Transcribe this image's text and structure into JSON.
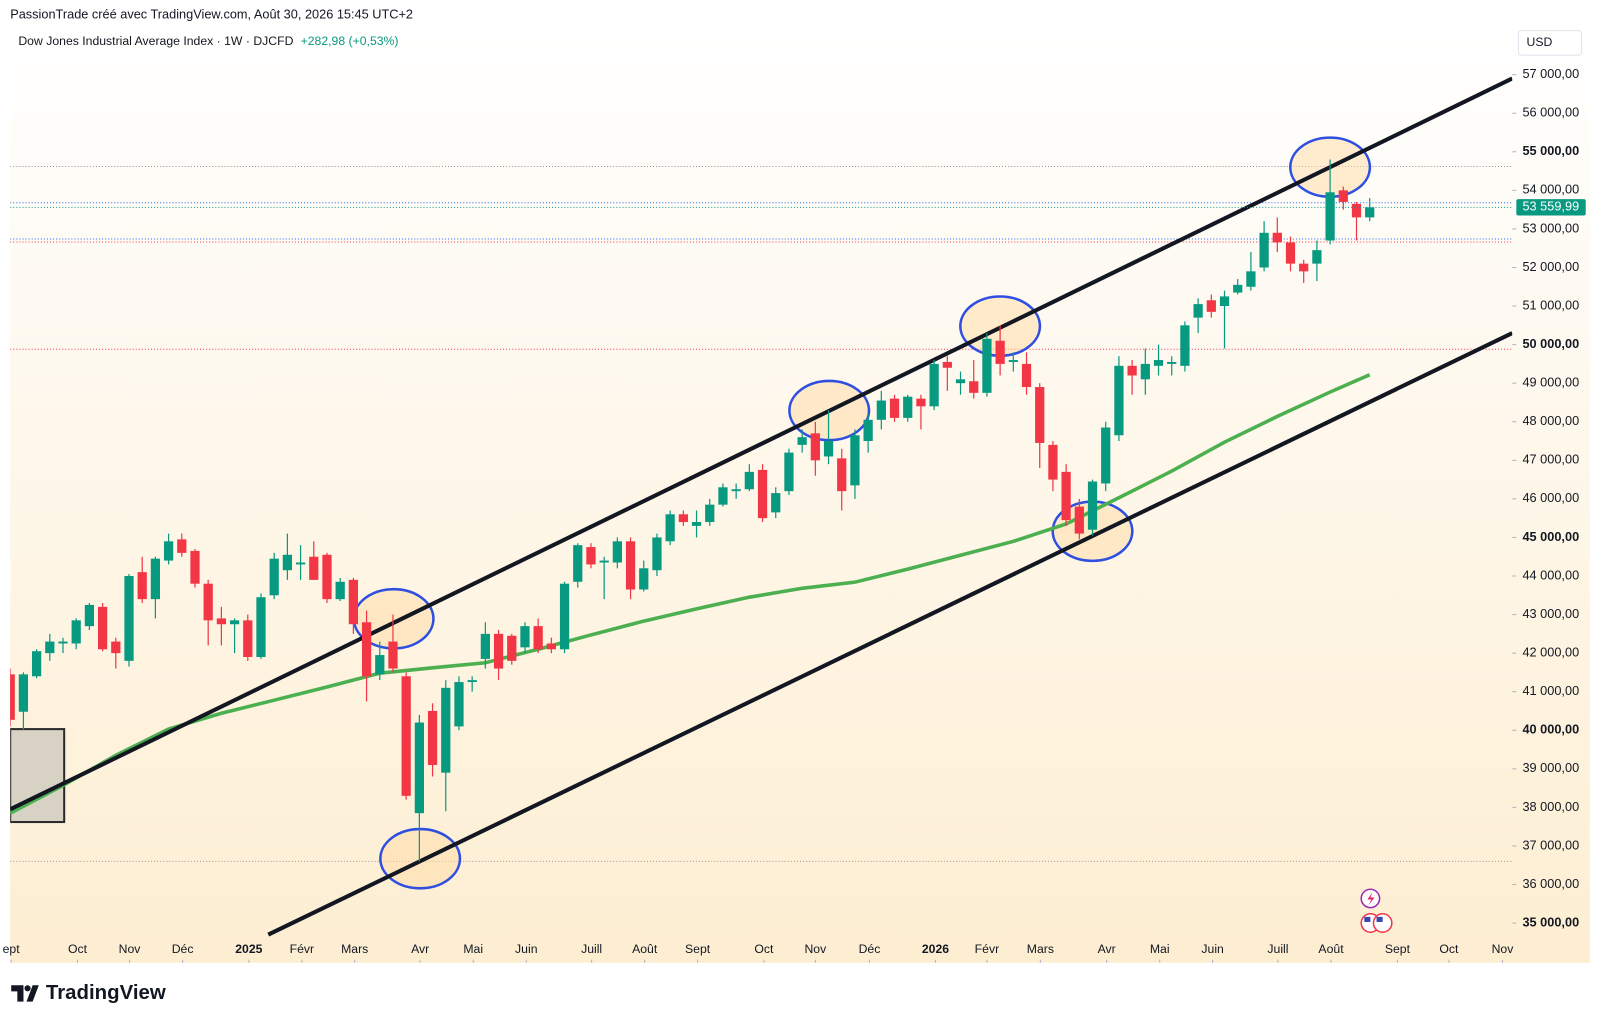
{
  "header": {
    "text": "PassionTrade créé avec TradingView.com, Août 30, 2026 15:45 UTC+2"
  },
  "footer": {
    "logo": "TradingView"
  },
  "chart_data": {
    "type": "candlestick",
    "title": "Dow Jones Industrial Average Index · 1W · DJCFD",
    "change": "+282,98 (+0,53%)",
    "currency": "USD",
    "up_color": "#089981",
    "down_color": "#f23645",
    "categories": [
      null,
      null,
      null,
      null,
      null,
      null,
      null,
      null,
      null,
      null,
      null,
      null,
      null,
      null,
      null,
      null,
      null,
      null,
      null,
      null,
      null,
      null,
      null,
      null,
      null,
      null,
      null,
      null,
      null,
      null,
      null,
      null,
      null,
      null,
      null,
      null,
      null,
      null,
      null,
      null,
      null,
      null,
      null,
      null,
      null,
      null,
      null,
      null,
      null,
      null,
      null,
      null,
      null,
      null,
      null,
      null,
      null,
      null,
      null,
      null,
      null,
      null,
      null,
      null,
      null,
      null,
      null,
      null,
      null,
      null,
      null,
      null,
      null,
      null,
      null,
      null,
      null,
      null,
      null,
      null,
      null,
      null,
      null,
      null,
      null,
      null,
      null,
      null,
      null,
      null,
      null,
      null,
      null,
      null,
      null,
      null,
      null,
      null,
      null,
      null,
      null,
      null,
      null,
      null
    ],
    "open": [
      41450,
      40480,
      41400,
      42000,
      42250,
      42250,
      42700,
      43200,
      42300,
      41800,
      44100,
      43400,
      44400,
      44950,
      44650,
      43800,
      42900,
      42750,
      42850,
      41900,
      43500,
      44150,
      44300,
      44500,
      44550,
      43400,
      43900,
      42800,
      41450,
      42300,
      41400,
      37850,
      40500,
      38900,
      40100,
      41250,
      41850,
      42500,
      42450,
      42150,
      42700,
      42250,
      42100,
      43850,
      44750,
      44350,
      44350,
      44900,
      43650,
      44150,
      44900,
      45600,
      45300,
      45400,
      45850,
      46200,
      46250,
      46750,
      45650,
      46200,
      47400,
      47700,
      47100,
      47050,
      46350,
      47500,
      48050,
      48600,
      48100,
      48600,
      48400,
      49550,
      49000,
      49050,
      48750,
      50100,
      49550,
      49500,
      48900,
      47400,
      46700,
      45800,
      45200,
      46400,
      47650,
      49450,
      49100,
      49450,
      49500,
      49450,
      50700,
      51150,
      51000,
      51350,
      51500,
      52000,
      52900,
      52650,
      52100,
      52100,
      52700,
      54000,
      53650,
      53300
    ],
    "high": [
      41600,
      41500,
      42100,
      42500,
      42400,
      42900,
      43300,
      43300,
      42400,
      44050,
      44500,
      44500,
      45100,
      45100,
      44700,
      43900,
      43200,
      42900,
      43000,
      43550,
      44600,
      45100,
      44800,
      44900,
      44600,
      43950,
      43950,
      43100,
      42300,
      43000,
      41500,
      40400,
      40700,
      41300,
      41400,
      41400,
      42800,
      42600,
      42500,
      42800,
      42900,
      42400,
      43850,
      44850,
      44850,
      44500,
      45000,
      45000,
      44400,
      45100,
      45700,
      45700,
      45700,
      46000,
      46400,
      46400,
      46900,
      46900,
      46300,
      47300,
      47800,
      48000,
      48300,
      47300,
      47800,
      48200,
      48800,
      48700,
      48700,
      48700,
      49600,
      49700,
      49300,
      49600,
      50300,
      50500,
      49800,
      49800,
      49000,
      47500,
      46900,
      46000,
      46500,
      48000,
      49700,
      49600,
      49900,
      50000,
      49700,
      50600,
      51200,
      51300,
      51400,
      51700,
      52400,
      53200,
      53300,
      52800,
      52200,
      52700,
      54800,
      54100,
      53700,
      53800
    ],
    "low": [
      40100,
      40000,
      41350,
      41800,
      42000,
      42100,
      42600,
      42050,
      41600,
      41650,
      43300,
      42900,
      44300,
      44500,
      43700,
      42200,
      42200,
      42000,
      41800,
      41850,
      43400,
      43900,
      43900,
      43900,
      43300,
      43350,
      42500,
      40750,
      41300,
      41500,
      38200,
      36600,
      38800,
      37900,
      40000,
      41000,
      41600,
      41300,
      41700,
      42000,
      42000,
      42000,
      42000,
      43700,
      44200,
      43400,
      44200,
      43400,
      43600,
      44000,
      44800,
      45300,
      45000,
      45300,
      45800,
      46000,
      46200,
      45400,
      45500,
      46100,
      47200,
      46600,
      46900,
      45700,
      46000,
      47200,
      47800,
      48000,
      48000,
      47800,
      48300,
      48800,
      48700,
      48600,
      48650,
      49200,
      49300,
      48700,
      46800,
      46200,
      45300,
      44950,
      45050,
      46200,
      47500,
      48700,
      48700,
      49200,
      49200,
      49300,
      50300,
      50700,
      49900,
      51300,
      51400,
      51900,
      52400,
      51900,
      51600,
      51650,
      52600,
      53500,
      52700,
      53200
    ],
    "close": [
      40270,
      41450,
      42050,
      42300,
      42300,
      42850,
      43250,
      42100,
      42000,
      44000,
      43400,
      44450,
      44900,
      44600,
      43800,
      42850,
      42750,
      42850,
      41900,
      43450,
      44450,
      44550,
      44350,
      43900,
      43400,
      43850,
      42750,
      41400,
      41950,
      41600,
      38300,
      40200,
      39100,
      41100,
      41250,
      41300,
      42500,
      41600,
      41800,
      42700,
      42100,
      42100,
      43800,
      44800,
      44300,
      44400,
      44900,
      43650,
      44200,
      45000,
      45600,
      45400,
      45400,
      45850,
      46300,
      46250,
      46700,
      45500,
      46150,
      47200,
      47600,
      47000,
      47500,
      46200,
      47650,
      48050,
      48550,
      48100,
      48650,
      48400,
      49500,
      49400,
      49100,
      48750,
      50150,
      49500,
      49600,
      48900,
      47450,
      46500,
      45450,
      45100,
      46450,
      47850,
      49450,
      49200,
      49500,
      49600,
      49550,
      50500,
      51050,
      50850,
      51250,
      51550,
      51900,
      52900,
      52650,
      52100,
      51900,
      52450,
      53950,
      53700,
      53300,
      53559.99
    ],
    "last_price": {
      "value": 53559.99,
      "label": "53 559,99"
    },
    "moving_average": {
      "color": "#4caf50",
      "x": [
        0,
        4,
        8,
        12,
        16,
        20,
        24,
        28,
        32,
        36,
        40,
        44,
        48,
        52,
        56,
        60,
        64,
        68,
        72,
        76,
        80,
        84,
        88,
        92,
        96,
        100,
        103
      ],
      "values": [
        37850,
        38570,
        39350,
        40030,
        40440,
        40780,
        41120,
        41480,
        41620,
        41750,
        42100,
        42470,
        42830,
        43150,
        43450,
        43680,
        43840,
        44180,
        44540,
        44900,
        45350,
        46030,
        46720,
        47470,
        48140,
        48770,
        49220
      ]
    },
    "trendlines": [
      {
        "color": "#131722",
        "x": [
          0,
          113.8
        ],
        "values": [
          37950,
          56900
        ]
      },
      {
        "color": "#131722",
        "x": [
          19.55,
          113.8
        ],
        "values": [
          34700,
          50300
        ]
      }
    ],
    "levels": [
      {
        "value": 54620,
        "color": "#8a8fa3"
      },
      {
        "value": 53680,
        "color": "#2962ff"
      },
      {
        "value": 52740,
        "color": "#2962ff"
      },
      {
        "value": 52660,
        "color": "#f23645"
      },
      {
        "value": 49880,
        "color": "#f23645"
      },
      {
        "value": 36600,
        "color": "#9598a1"
      }
    ],
    "highlights": [
      {
        "x": 29.05,
        "value": 42890
      },
      {
        "x": 31.06,
        "value": 36670
      },
      {
        "x": 62.05,
        "value": 48290
      },
      {
        "x": 75.0,
        "value": 50480
      },
      {
        "x": 82.0,
        "value": 45160
      },
      {
        "x": 100.0,
        "value": 54600
      }
    ],
    "box": {
      "x": [
        0,
        4.09
      ],
      "values": [
        37620,
        40030
      ]
    },
    "xlim": [
      0,
      113.8
    ],
    "xticks": [
      {
        "value": 0.07,
        "label": "ept"
      },
      {
        "value": 5.1,
        "label": "Oct"
      },
      {
        "value": 9.04,
        "label": "Nov"
      },
      {
        "value": 13.06,
        "label": "Déc"
      },
      {
        "value": 18.08,
        "label": "2025"
      },
      {
        "value": 22.1,
        "label": "Févr"
      },
      {
        "value": 26.1,
        "label": "Mars"
      },
      {
        "value": 31.06,
        "label": "Avr"
      },
      {
        "value": 35.08,
        "label": "Mai"
      },
      {
        "value": 39.1,
        "label": "Juin"
      },
      {
        "value": 44.05,
        "label": "Juill"
      },
      {
        "value": 48.07,
        "label": "Août"
      },
      {
        "value": 52.08,
        "label": "Sept"
      },
      {
        "value": 57.1,
        "label": "Oct"
      },
      {
        "value": 61.0,
        "label": "Nov"
      },
      {
        "value": 65.1,
        "label": "Déc"
      },
      {
        "value": 70.1,
        "label": "2026"
      },
      {
        "value": 74.0,
        "label": "Févr"
      },
      {
        "value": 78.05,
        "label": "Mars"
      },
      {
        "value": 83.07,
        "label": "Avr"
      },
      {
        "value": 87.09,
        "label": "Mai"
      },
      {
        "value": 91.1,
        "label": "Juin"
      },
      {
        "value": 96.05,
        "label": "Juill"
      },
      {
        "value": 100.07,
        "label": "Août"
      },
      {
        "value": 105.1,
        "label": "Sept"
      },
      {
        "value": 109.0,
        "label": "Oct"
      },
      {
        "value": 113.06,
        "label": "Nov"
      }
    ],
    "ylim": [
      33970,
      57480
    ],
    "yticks": [
      {
        "value": 35000,
        "label": "35 000,00"
      },
      {
        "value": 36000,
        "label": "36 000,00"
      },
      {
        "value": 37000,
        "label": "37 000,00"
      },
      {
        "value": 38000,
        "label": "38 000,00"
      },
      {
        "value": 39000,
        "label": "39 000,00"
      },
      {
        "value": 40000,
        "label": "40 000,00"
      },
      {
        "value": 41000,
        "label": "41 000,00"
      },
      {
        "value": 42000,
        "label": "42 000,00"
      },
      {
        "value": 43000,
        "label": "43 000,00"
      },
      {
        "value": 44000,
        "label": "44 000,00"
      },
      {
        "value": 45000,
        "label": "45 000,00"
      },
      {
        "value": 46000,
        "label": "46 000,00"
      },
      {
        "value": 47000,
        "label": "47 000,00"
      },
      {
        "value": 48000,
        "label": "48 000,00"
      },
      {
        "value": 49000,
        "label": "49 000,00"
      },
      {
        "value": 50000,
        "label": "50 000,00"
      },
      {
        "value": 51000,
        "label": "51 000,00"
      },
      {
        "value": 52000,
        "label": "52 000,00"
      },
      {
        "value": 53000,
        "label": "53 000,00"
      },
      {
        "value": 54000,
        "label": "54 000,00"
      },
      {
        "value": 55000,
        "label": "55 000,00"
      },
      {
        "value": 56000,
        "label": "56 000,00"
      },
      {
        "value": 57000,
        "label": "57 000,00"
      }
    ]
  }
}
